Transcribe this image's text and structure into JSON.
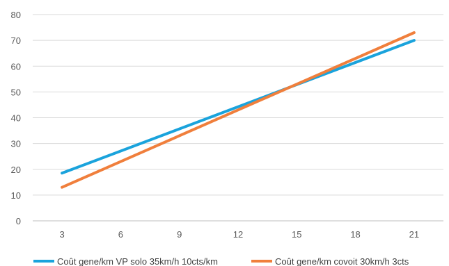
{
  "chart_data": {
    "type": "line",
    "title": "",
    "xlabel": "",
    "ylabel": "",
    "x": [
      3,
      6,
      9,
      12,
      15,
      18,
      21
    ],
    "x_ticks": [
      "3",
      "6",
      "9",
      "12",
      "15",
      "18",
      "21"
    ],
    "y_ticks": [
      "0",
      "10",
      "20",
      "30",
      "40",
      "50",
      "60",
      "70",
      "80"
    ],
    "xlim": [
      1.5,
      22.5
    ],
    "ylim": [
      0,
      80
    ],
    "grid": "horizontal",
    "legend_position": "bottom",
    "series": [
      {
        "name": "Coût gene/km VP solo 35km/h 10cts/km",
        "color": "#1aa3dc",
        "x": [
          3,
          21
        ],
        "values": [
          18.5,
          70
        ]
      },
      {
        "name": "Coût gene/km covoit 30km/h 3cts",
        "color": "#f07f3c",
        "x": [
          3,
          21
        ],
        "values": [
          13,
          73
        ]
      }
    ]
  }
}
